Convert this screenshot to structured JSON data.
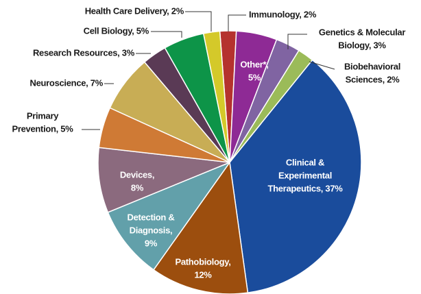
{
  "chart_data": {
    "type": "pie",
    "labels": [
      [
        "Immunology, 2%"
      ],
      [
        "Other*,",
        "5%"
      ],
      [
        "Genetics & Molecular",
        "Biology, 3%"
      ],
      [
        "Biobehavioral",
        "Sciences, 2%"
      ],
      [
        "Clinical &",
        "Experimental",
        "Therapeutics, 37%"
      ],
      [
        "Pathobiology,",
        "12%"
      ],
      [
        "Detection &",
        "Diagnosis,",
        "9%"
      ],
      [
        "Devices,",
        "8%"
      ],
      [
        "Primary",
        "Prevention, 5%"
      ],
      [
        "Neuroscience, 7%"
      ],
      [
        "Research Resources, 3%"
      ],
      [
        "Cell Biology, 5%"
      ],
      [
        "Health Care Delivery, 2%"
      ]
    ],
    "values": [
      2,
      5,
      3,
      2,
      37,
      12,
      9,
      8,
      5,
      7,
      3,
      5,
      2
    ],
    "colors": [
      "#b5322e",
      "#8e2a95",
      "#8064a2",
      "#9bbb59",
      "#1a4c9c",
      "#9c4e0e",
      "#62a0aa",
      "#8b6a7e",
      "#cf7a35",
      "#c8ad55",
      "#5a3a55",
      "#0d9448",
      "#d4c92a"
    ]
  }
}
